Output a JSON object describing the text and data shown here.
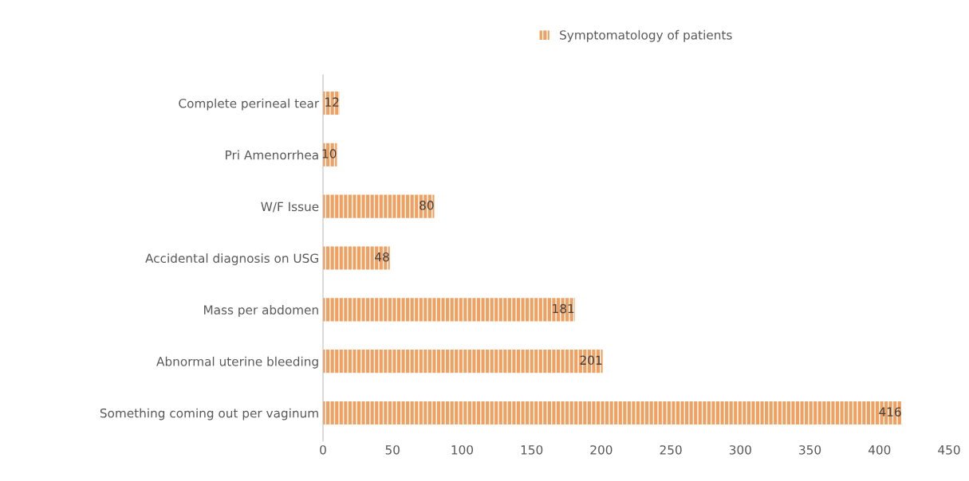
{
  "chart_data": {
    "type": "bar",
    "orientation": "horizontal",
    "categories": [
      "Complete perineal tear",
      "Pri Amenorrhea",
      "W/F Issue",
      "Accidental diagnosis on USG",
      "Mass per abdomen",
      "Abnormal uterine bleeding",
      "Something coming out per vaginum"
    ],
    "series": [
      {
        "name": "Symptomatology of patients",
        "color": "#f0a060",
        "values": [
          12,
          10,
          80,
          48,
          181,
          201,
          416
        ]
      }
    ],
    "xlim": [
      0,
      450
    ],
    "xticks": [
      0,
      50,
      100,
      150,
      200,
      250,
      300,
      350,
      400,
      450
    ],
    "data_labels": true,
    "legend": "top",
    "grid": false
  }
}
